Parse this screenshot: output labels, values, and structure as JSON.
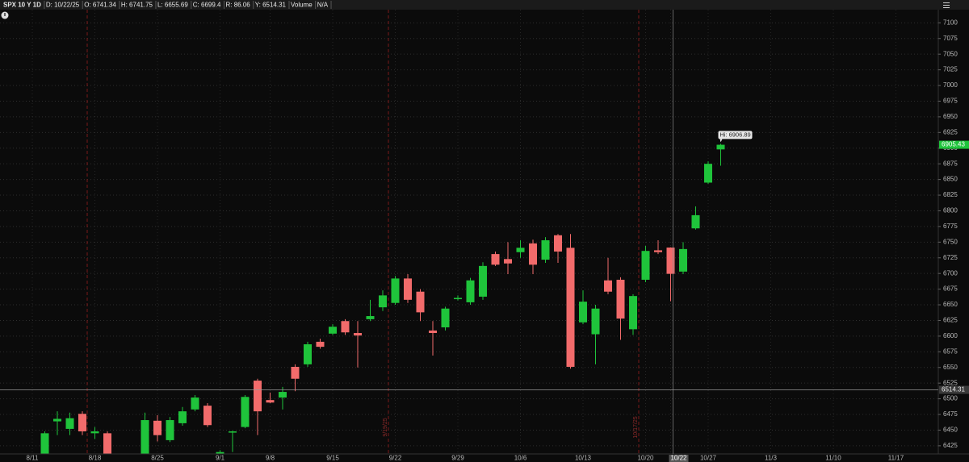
{
  "header": [
    "SPX 10 Y 1D",
    "D: 10/22/25",
    "O: 6741.34",
    "H: 6741.75",
    "L: 6655.69",
    "C: 6699.4",
    "R: 86.06",
    "Y: 6514.31",
    "Volume",
    "N/A"
  ],
  "expiration_labels": [
    "9/19/25",
    "10/17/25"
  ],
  "chart_data": {
    "type": "candlestick",
    "categories": [
      "8/11",
      null,
      null,
      null,
      null,
      "8/18",
      null,
      null,
      null,
      null,
      "8/25",
      null,
      null,
      null,
      null,
      "9/1",
      null,
      null,
      null,
      "9/8",
      null,
      null,
      null,
      null,
      "9/15",
      null,
      null,
      null,
      null,
      "9/22",
      null,
      null,
      null,
      null,
      "9/29",
      null,
      null,
      null,
      null,
      "10/6",
      null,
      null,
      null,
      null,
      "10/13",
      null,
      null,
      null,
      null,
      "10/20",
      null,
      "10/22",
      null,
      null,
      "10/27",
      null,
      null,
      null,
      null,
      "11/3",
      null,
      null,
      null,
      null,
      "11/10",
      null,
      null,
      null,
      null,
      "11/17",
      null,
      null,
      null
    ],
    "open": [
      null,
      6410,
      6464,
      6452,
      6476,
      6445,
      6445,
      null,
      null,
      6410,
      6465,
      6434,
      6461,
      6483,
      6489,
      6410,
      6446,
      6455,
      6529,
      6498,
      6502,
      6551,
      6555,
      6591,
      6604,
      6624,
      6605,
      6627,
      6646,
      6653,
      6692,
      6671,
      6609,
      6614,
      6659,
      6654,
      6663,
      6731,
      6723,
      6734,
      6748,
      6722,
      6761,
      6741,
      6622,
      6603,
      6689,
      6690,
      6611,
      6690,
      6737,
      6741.34,
      6703,
      6772,
      6845,
      6898,
      null,
      null,
      null,
      null,
      null,
      null,
      null,
      null,
      null,
      null,
      null,
      null,
      null,
      null,
      null,
      null,
      null
    ],
    "high": [
      null,
      6448,
      6480,
      6478,
      6480,
      6455,
      6448,
      null,
      null,
      6478,
      6474,
      6471,
      6487,
      6506,
      6493,
      6418,
      6449,
      6506,
      6532,
      6510,
      6519,
      6555,
      6591,
      6596,
      6619,
      6627,
      6624,
      6658,
      6673,
      6696,
      6699,
      6675,
      6624,
      6647,
      6665,
      6693,
      6718,
      6735,
      6750,
      6753,
      6754,
      6758,
      6763,
      6763,
      6673,
      6650,
      6725,
      6694,
      6667,
      6744,
      6753,
      6741.75,
      6750,
      6807,
      6879,
      6906.89,
      null,
      null,
      null,
      null,
      null,
      null,
      null,
      null,
      null,
      null,
      null,
      null,
      null,
      null,
      null,
      null,
      null
    ],
    "low": [
      null,
      6405,
      6442,
      6442,
      6442,
      6436,
      6405,
      null,
      null,
      6405,
      6432,
      6431,
      6457,
      6480,
      6455,
      6405,
      6415,
      6453,
      6442,
      6493,
      6483,
      6512,
      6551,
      6580,
      6602,
      6602,
      6550,
      6624,
      6640,
      6650,
      6653,
      6624,
      6569,
      6609,
      6657,
      6650,
      6658,
      6712,
      6699,
      6725,
      6699,
      6717,
      6717,
      6548,
      6619,
      6555,
      6667,
      6594,
      6602,
      6686,
      6731,
      6655.69,
      6699,
      6770,
      6843,
      6872,
      null,
      null,
      null,
      null,
      null,
      null,
      null,
      null,
      null,
      null,
      null,
      null,
      null,
      null,
      null,
      null,
      null
    ],
    "close": [
      null,
      6445,
      6468,
      6469,
      6448,
      6448,
      6412,
      null,
      null,
      6466,
      6442,
      6466,
      6480,
      6502,
      6458,
      6415,
      6448,
      6503,
      6480,
      6494,
      6511,
      6532,
      6587,
      6583,
      6615,
      6606,
      6601,
      6632,
      6665,
      6692,
      6658,
      6638,
      6605,
      6644,
      6661,
      6689,
      6712,
      6714,
      6716,
      6741,
      6714,
      6753,
      6735,
      6551,
      6655,
      6644,
      6671,
      6628,
      6664,
      6736,
      6734,
      6699.4,
      6739,
      6793,
      6875,
      6905.43,
      null,
      null,
      null,
      null,
      null,
      null,
      null,
      null,
      null,
      null,
      null,
      null,
      null,
      null,
      null,
      null,
      null
    ],
    "up_color": "#1fc43b",
    "down_color": "#f26b6b",
    "ylim": [
      6412,
      7121
    ],
    "yticks": [
      6425,
      6450,
      6475,
      6500,
      6525,
      6550,
      6575,
      6600,
      6625,
      6650,
      6675,
      6700,
      6725,
      6750,
      6775,
      6800,
      6825,
      6850,
      6875,
      6900,
      6925,
      6950,
      6975,
      7000,
      7025,
      7050,
      7075,
      7100
    ],
    "grid": true,
    "reference_line": 6514.31,
    "last_price": 6905.43,
    "high_marker": {
      "value": 6906.89,
      "label": "Hi: 6906.89"
    },
    "crosshair_category": 51
  }
}
